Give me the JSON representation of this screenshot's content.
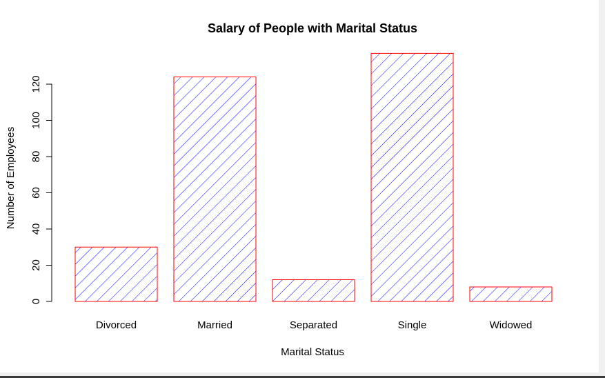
{
  "chart_data": {
    "type": "bar",
    "title": "Salary of People with Marital Status",
    "xlabel": "Marital Status",
    "ylabel": "Number of Employees",
    "categories": [
      "Divorced",
      "Married",
      "Separated",
      "Single",
      "Widowed"
    ],
    "values": [
      30,
      124,
      12,
      137,
      8
    ],
    "ylim": [
      0,
      137
    ],
    "yticks": [
      0,
      20,
      40,
      60,
      80,
      100,
      120
    ],
    "grid": false,
    "legend": "none",
    "bar_fill": "hatched",
    "colors": {
      "hatch": "#0000ff",
      "border": "#ff0000",
      "background": "#ffffff"
    }
  }
}
